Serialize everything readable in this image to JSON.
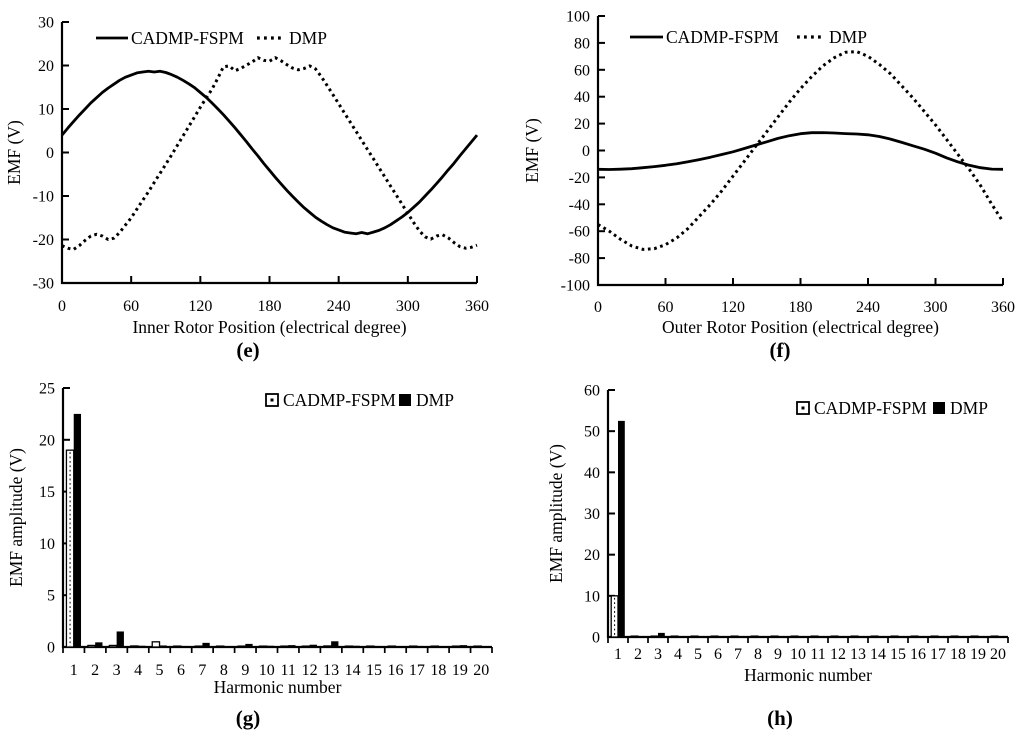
{
  "figure": {
    "background": "#ffffff",
    "ink": "#000000"
  },
  "chart_data": [
    {
      "id": "e",
      "type": "line",
      "caption": "(e)",
      "xlabel": "Inner Rotor Position (electrical degree)",
      "ylabel": "EMF (V)",
      "xlim": [
        0,
        360
      ],
      "ylim": [
        -30,
        30
      ],
      "xticks": [
        0,
        60,
        120,
        180,
        240,
        300,
        360
      ],
      "yticks": [
        30,
        20,
        10,
        0,
        -10,
        -20,
        -30
      ],
      "grid": false,
      "legend_position": "top-inside",
      "series": [
        {
          "name": "CADMP-FSPM",
          "style": "solid",
          "points": [
            [
              0,
              4
            ],
            [
              5,
              5.6
            ],
            [
              10,
              7.1
            ],
            [
              15,
              8.6
            ],
            [
              20,
              10
            ],
            [
              25,
              11.4
            ],
            [
              30,
              12.6
            ],
            [
              35,
              13.8
            ],
            [
              40,
              14.8
            ],
            [
              45,
              15.7
            ],
            [
              50,
              16.6
            ],
            [
              55,
              17.3
            ],
            [
              60,
              17.8
            ],
            [
              65,
              18.3
            ],
            [
              70,
              18.5
            ],
            [
              75,
              18.7
            ],
            [
              80,
              18.5
            ],
            [
              85,
              18.7
            ],
            [
              90,
              18.4
            ],
            [
              95,
              17.9
            ],
            [
              100,
              17.3
            ],
            [
              105,
              16.6
            ],
            [
              110,
              15.8
            ],
            [
              115,
              14.9
            ],
            [
              120,
              13.8
            ],
            [
              125,
              12.7
            ],
            [
              130,
              11.4
            ],
            [
              135,
              10.1
            ],
            [
              140,
              8.7
            ],
            [
              145,
              7.2
            ],
            [
              150,
              5.7
            ],
            [
              155,
              4.1
            ],
            [
              160,
              2.5
            ],
            [
              165,
              0.8
            ],
            [
              170,
              -0.8
            ],
            [
              175,
              -2.5
            ],
            [
              180,
              -4.1
            ],
            [
              185,
              -5.7
            ],
            [
              190,
              -7.2
            ],
            [
              195,
              -8.7
            ],
            [
              200,
              -10.1
            ],
            [
              205,
              -11.4
            ],
            [
              210,
              -12.7
            ],
            [
              215,
              -13.8
            ],
            [
              220,
              -14.9
            ],
            [
              225,
              -15.8
            ],
            [
              230,
              -16.6
            ],
            [
              235,
              -17.3
            ],
            [
              240,
              -17.8
            ],
            [
              245,
              -18.3
            ],
            [
              250,
              -18.5
            ],
            [
              255,
              -18.7
            ],
            [
              260,
              -18.4
            ],
            [
              265,
              -18.7
            ],
            [
              270,
              -18.3
            ],
            [
              275,
              -17.9
            ],
            [
              280,
              -17.3
            ],
            [
              285,
              -16.6
            ],
            [
              290,
              -15.7
            ],
            [
              295,
              -14.8
            ],
            [
              300,
              -13.8
            ],
            [
              305,
              -12.6
            ],
            [
              310,
              -11.4
            ],
            [
              315,
              -10
            ],
            [
              320,
              -8.6
            ],
            [
              325,
              -7.1
            ],
            [
              330,
              -5.6
            ],
            [
              335,
              -4
            ],
            [
              340,
              -2.5
            ],
            [
              345,
              -0.8
            ],
            [
              350,
              0.8
            ],
            [
              355,
              2.4
            ],
            [
              360,
              4
            ]
          ]
        },
        {
          "name": "DMP",
          "style": "dotted",
          "points": [
            [
              0,
              -21.4
            ],
            [
              5,
              -22
            ],
            [
              10,
              -22.3
            ],
            [
              15,
              -21.4
            ],
            [
              20,
              -20.2
            ],
            [
              25,
              -19.2
            ],
            [
              30,
              -18.8
            ],
            [
              35,
              -19.2
            ],
            [
              40,
              -20
            ],
            [
              45,
              -19.7
            ],
            [
              50,
              -18.4
            ],
            [
              55,
              -16.7
            ],
            [
              60,
              -15
            ],
            [
              65,
              -13
            ],
            [
              70,
              -11
            ],
            [
              75,
              -9
            ],
            [
              80,
              -6.9
            ],
            [
              85,
              -4.8
            ],
            [
              90,
              -2.7
            ],
            [
              95,
              -0.6
            ],
            [
              100,
              1.6
            ],
            [
              105,
              3.8
            ],
            [
              110,
              6
            ],
            [
              115,
              8.2
            ],
            [
              120,
              10.4
            ],
            [
              125,
              12.5
            ],
            [
              130,
              14.5
            ],
            [
              135,
              17
            ],
            [
              140,
              19.7
            ],
            [
              145,
              19.9
            ],
            [
              150,
              18.8
            ],
            [
              155,
              19.3
            ],
            [
              160,
              20.1
            ],
            [
              165,
              20.8
            ],
            [
              170,
              21.8
            ],
            [
              175,
              21.2
            ],
            [
              180,
              21
            ],
            [
              185,
              21.8
            ],
            [
              190,
              21.1
            ],
            [
              195,
              20.2
            ],
            [
              200,
              19.4
            ],
            [
              205,
              19
            ],
            [
              210,
              19.3
            ],
            [
              215,
              19.9
            ],
            [
              220,
              19.2
            ],
            [
              225,
              17.4
            ],
            [
              230,
              15.4
            ],
            [
              235,
              13.3
            ],
            [
              240,
              11.2
            ],
            [
              245,
              9.1
            ],
            [
              250,
              7
            ],
            [
              255,
              4.9
            ],
            [
              260,
              2.8
            ],
            [
              265,
              0.7
            ],
            [
              270,
              -1.4
            ],
            [
              275,
              -3.5
            ],
            [
              280,
              -5.6
            ],
            [
              285,
              -7.7
            ],
            [
              290,
              -9.8
            ],
            [
              295,
              -11.9
            ],
            [
              300,
              -14
            ],
            [
              305,
              -16.1
            ],
            [
              310,
              -18
            ],
            [
              315,
              -19.4
            ],
            [
              320,
              -19.9
            ],
            [
              325,
              -19.2
            ],
            [
              330,
              -18.9
            ],
            [
              335,
              -19.6
            ],
            [
              340,
              -20.7
            ],
            [
              345,
              -21.6
            ],
            [
              350,
              -22
            ],
            [
              355,
              -21.8
            ],
            [
              360,
              -21.3
            ]
          ]
        }
      ]
    },
    {
      "id": "f",
      "type": "line",
      "caption": "(f)",
      "xlabel": "Outer Rotor Position (electrical degree)",
      "ylabel": "EMF (V)",
      "xlim": [
        0,
        360
      ],
      "ylim": [
        -100,
        100
      ],
      "xticks": [
        0,
        60,
        120,
        180,
        240,
        300,
        360
      ],
      "yticks": [
        100,
        80,
        60,
        40,
        20,
        0,
        -20,
        -40,
        -60,
        -80,
        -100
      ],
      "grid": false,
      "legend_position": "top-inside",
      "series": [
        {
          "name": "CADMP-FSPM",
          "style": "solid",
          "points": [
            [
              0,
              -14
            ],
            [
              10,
              -14.1
            ],
            [
              20,
              -13.9
            ],
            [
              30,
              -13.5
            ],
            [
              40,
              -12.8
            ],
            [
              50,
              -12
            ],
            [
              60,
              -11
            ],
            [
              70,
              -9.8
            ],
            [
              80,
              -8.4
            ],
            [
              90,
              -6.8
            ],
            [
              100,
              -5
            ],
            [
              110,
              -3
            ],
            [
              120,
              -1
            ],
            [
              130,
              1.5
            ],
            [
              140,
              4
            ],
            [
              150,
              6.5
            ],
            [
              160,
              9
            ],
            [
              170,
              11
            ],
            [
              180,
              12.5
            ],
            [
              190,
              13.2
            ],
            [
              200,
              13.3
            ],
            [
              210,
              13
            ],
            [
              220,
              12.6
            ],
            [
              230,
              12.3
            ],
            [
              240,
              11.7
            ],
            [
              250,
              10.4
            ],
            [
              260,
              8.5
            ],
            [
              270,
              6
            ],
            [
              280,
              3.5
            ],
            [
              290,
              1
            ],
            [
              300,
              -2
            ],
            [
              310,
              -5.5
            ],
            [
              320,
              -8.5
            ],
            [
              330,
              -11
            ],
            [
              340,
              -12.8
            ],
            [
              350,
              -13.8
            ],
            [
              360,
              -14
            ]
          ]
        },
        {
          "name": "DMP",
          "style": "dotted",
          "points": [
            [
              0,
              -55
            ],
            [
              10,
              -60
            ],
            [
              20,
              -66
            ],
            [
              30,
              -71
            ],
            [
              40,
              -73.5
            ],
            [
              50,
              -73
            ],
            [
              60,
              -70
            ],
            [
              70,
              -65
            ],
            [
              80,
              -58
            ],
            [
              90,
              -49
            ],
            [
              100,
              -40
            ],
            [
              110,
              -30
            ],
            [
              120,
              -19
            ],
            [
              130,
              -8
            ],
            [
              140,
              3
            ],
            [
              150,
              14
            ],
            [
              160,
              25
            ],
            [
              170,
              36
            ],
            [
              180,
              46
            ],
            [
              190,
              55
            ],
            [
              200,
              63
            ],
            [
              210,
              69
            ],
            [
              220,
              73
            ],
            [
              230,
              73.5
            ],
            [
              240,
              70
            ],
            [
              250,
              64
            ],
            [
              260,
              57
            ],
            [
              270,
              48
            ],
            [
              280,
              39
            ],
            [
              290,
              29
            ],
            [
              300,
              19
            ],
            [
              310,
              8
            ],
            [
              320,
              -3
            ],
            [
              330,
              -14
            ],
            [
              340,
              -26
            ],
            [
              350,
              -40
            ],
            [
              360,
              -53
            ]
          ]
        }
      ]
    },
    {
      "id": "g",
      "type": "bar",
      "caption": "(g)",
      "xlabel": "Harmonic number",
      "ylabel": "EMF amplitude (V)",
      "categories": [
        1,
        2,
        3,
        4,
        5,
        6,
        7,
        8,
        9,
        10,
        11,
        12,
        13,
        14,
        15,
        16,
        17,
        18,
        19,
        20
      ],
      "ylim": [
        0,
        25
      ],
      "yticks": [
        25,
        20,
        15,
        10,
        5,
        0
      ],
      "grid": false,
      "legend_position": "top-right-inside",
      "series": [
        {
          "name": "CADMP-FSPM",
          "style": "white",
          "values": [
            19,
            0.15,
            0.15,
            0.1,
            0.5,
            0.08,
            0.08,
            0.06,
            0.06,
            0.06,
            0.05,
            0.05,
            0.1,
            0.05,
            0.05,
            0.05,
            0.04,
            0.04,
            0.04,
            0.03
          ]
        },
        {
          "name": "DMP",
          "style": "black",
          "values": [
            22.5,
            0.45,
            1.5,
            0.12,
            0.15,
            0.1,
            0.4,
            0.08,
            0.3,
            0.12,
            0.18,
            0.22,
            0.55,
            0.12,
            0.1,
            0.08,
            0.1,
            0.06,
            0.18,
            0.06
          ]
        }
      ]
    },
    {
      "id": "h",
      "type": "bar",
      "caption": "(h)",
      "xlabel": "Harmonic number",
      "ylabel": "EMF amplitude (V)",
      "categories": [
        1,
        2,
        3,
        4,
        5,
        6,
        7,
        8,
        9,
        10,
        11,
        12,
        13,
        14,
        15,
        16,
        17,
        18,
        19,
        20
      ],
      "ylim": [
        0,
        60
      ],
      "yticks": [
        60,
        50,
        40,
        30,
        20,
        10,
        0
      ],
      "grid": false,
      "legend_position": "top-right-inside",
      "series": [
        {
          "name": "CADMP-FSPM",
          "style": "white",
          "values": [
            10,
            0.1,
            0.15,
            0.06,
            0.1,
            0.05,
            0.05,
            0.05,
            0.05,
            0.05,
            0.04,
            0.04,
            0.05,
            0.03,
            0.03,
            0.03,
            0.03,
            0.03,
            0.03,
            0.02
          ]
        },
        {
          "name": "DMP",
          "style": "black",
          "values": [
            52.5,
            0.2,
            1,
            0.1,
            0.1,
            0.08,
            0.1,
            0.06,
            0.1,
            0.06,
            0.08,
            0.06,
            0.1,
            0.05,
            0.05,
            0.05,
            0.05,
            0.04,
            0.05,
            0.04
          ]
        }
      ]
    }
  ]
}
